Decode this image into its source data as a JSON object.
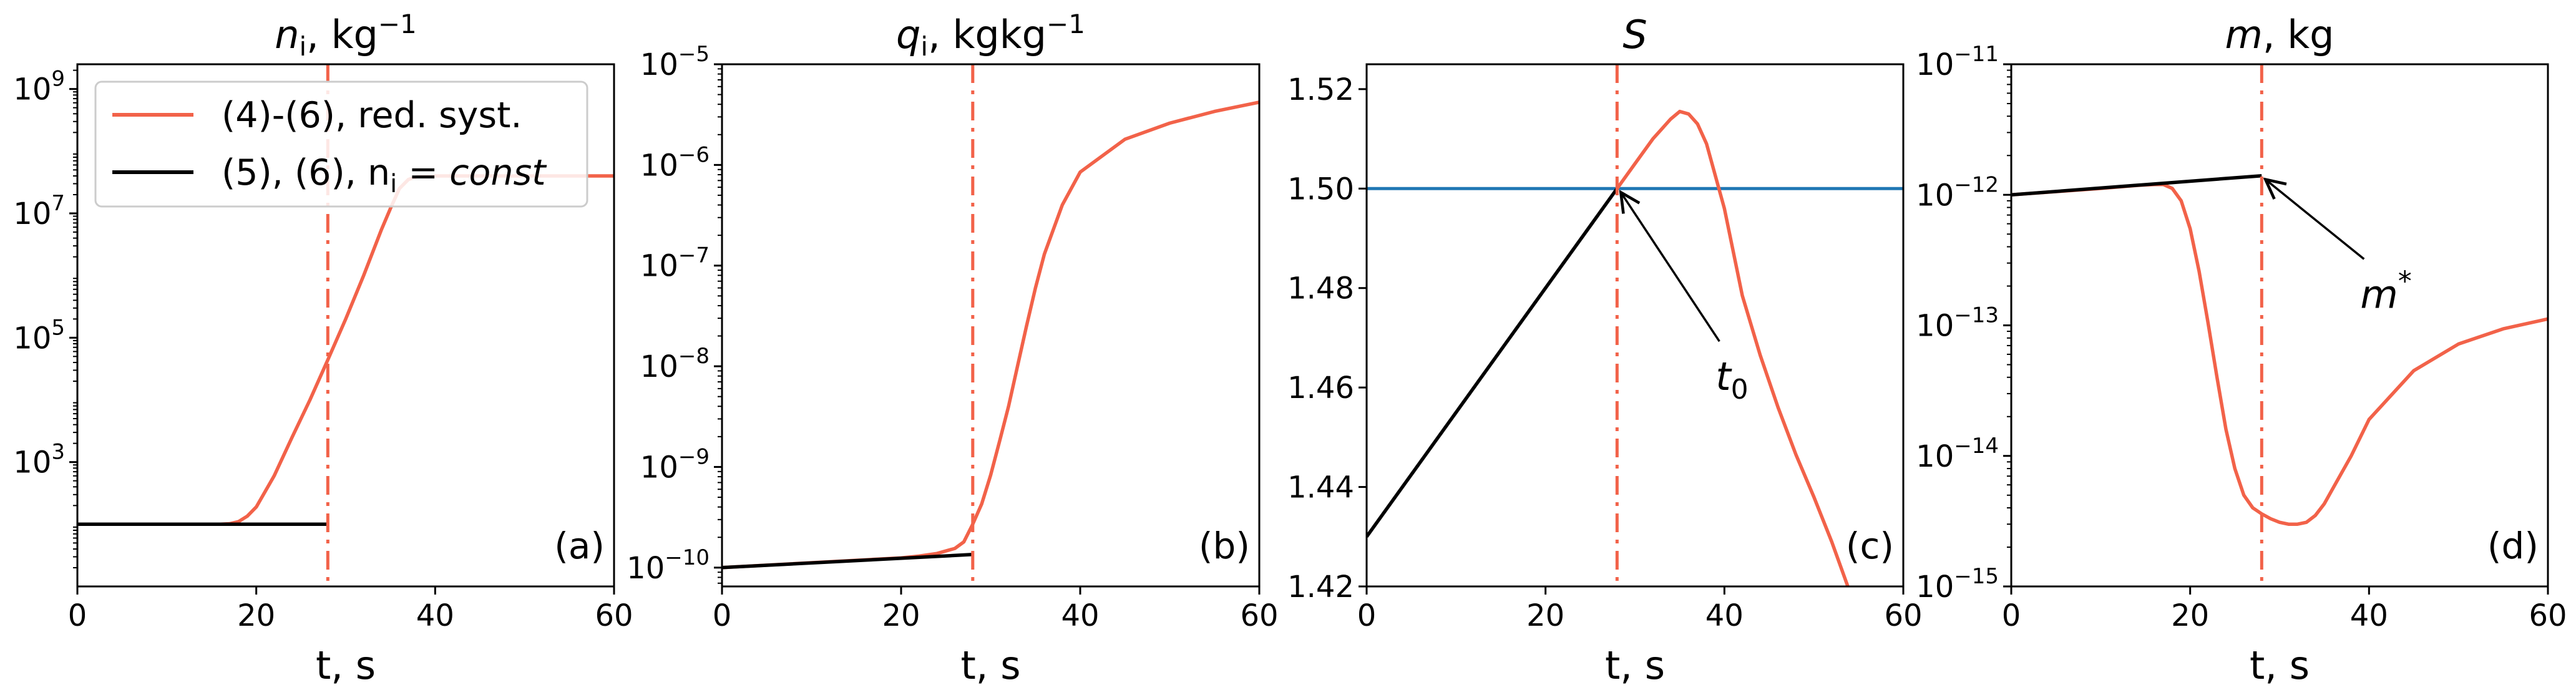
{
  "colors": {
    "red": "#f26249",
    "black": "#000000",
    "blue": "#1f77b4"
  },
  "chart_data": [
    {
      "type": "line",
      "panel": "(a)",
      "title": {
        "pre": "n",
        "sub": "i",
        "post": ", kg",
        "sup": "−1"
      },
      "xlabel": "t, s",
      "xlim": [
        0,
        60
      ],
      "xticks": [
        "0",
        "20",
        "40",
        "60"
      ],
      "yscale": "log",
      "ylim": [
        10,
        2500000000.0
      ],
      "yticks": [
        {
          "base": "10",
          "exp": "3"
        },
        {
          "base": "10",
          "exp": "5"
        },
        {
          "base": "10",
          "exp": "7"
        },
        {
          "base": "10",
          "exp": "9"
        }
      ],
      "vline_x": 28,
      "legend": {
        "position": "upper-left",
        "entries": [
          {
            "label": "(4)-(6), red. syst.",
            "color": "#f26249"
          },
          {
            "label_pre": "(5), (6), n",
            "label_sub": "i",
            "label_mid": " = ",
            "label_it": "const",
            "color": "#000000"
          }
        ]
      },
      "series": [
        {
          "color": "#f26249",
          "x": [
            0,
            16,
            17,
            18,
            19,
            20,
            22,
            24,
            26,
            28,
            30,
            32,
            34,
            35,
            36,
            37,
            38,
            40,
            45,
            50,
            55,
            60
          ],
          "y": [
            100,
            100,
            102,
            110,
            135,
            190,
            600,
            2500,
            10000,
            44000,
            200000,
            1000000,
            5500000,
            12000000,
            25000000,
            35000000,
            39000000,
            40000000,
            40000000,
            40000000,
            40000000,
            40000000
          ]
        },
        {
          "color": "#000000",
          "x": [
            0,
            28
          ],
          "y": [
            100,
            100
          ]
        }
      ]
    },
    {
      "type": "line",
      "panel": "(b)",
      "title": {
        "pre": "q",
        "sub": "i",
        "post": ", kgkg",
        "sup": "−1"
      },
      "xlabel": "t, s",
      "xlim": [
        0,
        60
      ],
      "xticks": [
        "0",
        "20",
        "40",
        "60"
      ],
      "yscale": "log",
      "ylim": [
        6.5e-11,
        1e-05
      ],
      "yticks": [
        {
          "base": "10",
          "exp": "−10"
        },
        {
          "base": "10",
          "exp": "−9"
        },
        {
          "base": "10",
          "exp": "−8"
        },
        {
          "base": "10",
          "exp": "−7"
        },
        {
          "base": "10",
          "exp": "−6"
        },
        {
          "base": "10",
          "exp": "−5"
        }
      ],
      "vline_x": 28,
      "series": [
        {
          "color": "#f26249",
          "x": [
            0,
            20,
            22,
            24,
            26,
            27,
            28,
            29,
            30,
            31,
            32,
            33,
            34,
            35,
            36,
            38,
            40,
            45,
            50,
            55,
            60
          ],
          "y": [
            1e-10,
            1.25e-10,
            1.3e-10,
            1.38e-10,
            1.55e-10,
            1.8e-10,
            2.7e-10,
            4.3e-10,
            8.3e-10,
            1.8e-09,
            4e-09,
            1e-08,
            2.5e-08,
            6e-08,
            1.3e-07,
            4e-07,
            8.5e-07,
            1.8e-06,
            2.6e-06,
            3.4e-06,
            4.2e-06
          ]
        },
        {
          "color": "#000000",
          "x": [
            0,
            28
          ],
          "y": [
            1e-10,
            1.35e-10
          ]
        }
      ]
    },
    {
      "type": "line",
      "panel": "(c)",
      "title": {
        "pre": "S"
      },
      "xlabel": "t, s",
      "xlim": [
        0,
        60
      ],
      "xticks": [
        "0",
        "20",
        "40",
        "60"
      ],
      "yscale": "linear",
      "ylim": [
        1.42,
        1.525
      ],
      "yticks": [
        "1.42",
        "1.44",
        "1.46",
        "1.48",
        "1.50",
        "1.52"
      ],
      "vline_x": 28,
      "hline_y": 1.5,
      "annotation": {
        "text_base": "t",
        "text_sub": "0",
        "x": 40,
        "y": 1.462,
        "arrow_to": [
          28,
          1.5
        ]
      },
      "series": [
        {
          "color": "#f26249",
          "x": [
            28,
            30,
            32,
            34,
            35,
            36,
            37,
            38,
            40,
            42,
            44,
            46,
            48,
            50,
            52,
            54
          ],
          "y": [
            1.5,
            1.505,
            1.51,
            1.514,
            1.5155,
            1.515,
            1.513,
            1.509,
            1.496,
            1.4785,
            1.4665,
            1.456,
            1.4465,
            1.438,
            1.429,
            1.419
          ]
        },
        {
          "color": "#000000",
          "x": [
            0,
            28
          ],
          "y": [
            1.43,
            1.5
          ]
        }
      ]
    },
    {
      "type": "line",
      "panel": "(d)",
      "title": {
        "pre": "m",
        "post": ", kg"
      },
      "xlabel": "t, s",
      "xlim": [
        0,
        60
      ],
      "xticks": [
        "0",
        "20",
        "40",
        "60"
      ],
      "yscale": "log",
      "ylim": [
        1e-15,
        1e-11
      ],
      "yticks": [
        {
          "base": "10",
          "exp": "−15"
        },
        {
          "base": "10",
          "exp": "−14"
        },
        {
          "base": "10",
          "exp": "−13"
        },
        {
          "base": "10",
          "exp": "−12"
        },
        {
          "base": "10",
          "exp": "−11"
        }
      ],
      "vline_x": 28,
      "annotation": {
        "text_base": "m",
        "text_sup": "*",
        "x": 40,
        "y": 1.7e-13,
        "arrow_to": [
          28,
          1.4e-12
        ]
      },
      "series": [
        {
          "color": "#f26249",
          "x": [
            0,
            10,
            14,
            16,
            17,
            18,
            19,
            20,
            21,
            22,
            23,
            24,
            25,
            26,
            27,
            28,
            29,
            30,
            31,
            32,
            33,
            34,
            35,
            36,
            38,
            40,
            45,
            50,
            55,
            60
          ],
          "y": [
            1e-12,
            1.12e-12,
            1.18e-12,
            1.2e-12,
            1.2e-12,
            1.12e-12,
            9e-13,
            5.5e-13,
            2.6e-13,
            1.05e-13,
            4e-14,
            1.6e-14,
            8e-15,
            5e-15,
            4e-15,
            3.6e-15,
            3.3e-15,
            3.1e-15,
            3e-15,
            3e-15,
            3.1e-15,
            3.5e-15,
            4.3e-15,
            5.7e-15,
            1e-14,
            1.9e-14,
            4.5e-14,
            7.2e-14,
            9.4e-14,
            1.12e-13
          ]
        },
        {
          "color": "#000000",
          "x": [
            0,
            28
          ],
          "y": [
            1e-12,
            1.4e-12
          ]
        }
      ]
    }
  ]
}
